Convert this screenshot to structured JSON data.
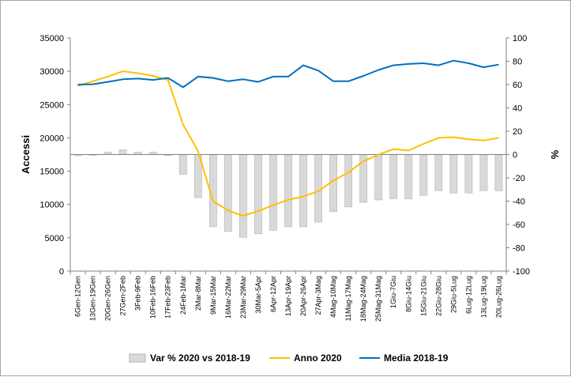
{
  "chart_data": {
    "type": "bar+line",
    "categories": [
      "6Gen-12Gen",
      "13Gen-19Gen",
      "20Gen-26Gen",
      "27Gen-2Feb",
      "3Feb-9Feb",
      "10Feb-16Feb",
      "17Feb-23Feb",
      "24Feb-1Mar",
      "2Mar-8Mar",
      "9Mar-15Mar",
      "16Mar-22Mar",
      "23Mar-29Mar",
      "30Mar-5Apr",
      "6Apr-12Apr",
      "13Apr-19Apr",
      "20Apr-26Apr",
      "27Apr-3Mag",
      "4Mag-10Mag",
      "11Mag-17Mag",
      "18Mag-24Mag",
      "25Mag-31Mag",
      "1Giu-7Giu",
      "8Giu-14Giu",
      "15Giu-21Giu",
      "22Giu-28Giu",
      "29Giu-5Lug",
      "6Lug-12Lug",
      "13Lug-19Lug",
      "20Lug-26Lug"
    ],
    "series": [
      {
        "name": "Var % 2020 vs 2018-19",
        "kind": "bar",
        "axis": "right",
        "color": "#d9d9d9",
        "values": [
          -1,
          0,
          2,
          4,
          2,
          2,
          -1,
          -17,
          -37,
          -62,
          -66,
          -71,
          -68,
          -65,
          -62,
          -62,
          -58,
          -49,
          -45,
          -41,
          -39,
          -38,
          -38,
          -35,
          -31,
          -33,
          -33,
          -31,
          -31
        ]
      },
      {
        "name": "Anno 2020",
        "kind": "line",
        "axis": "left",
        "color": "#ffc000",
        "values": [
          27800,
          28500,
          29200,
          30000,
          29700,
          29300,
          28700,
          22000,
          18000,
          10500,
          9100,
          8300,
          9000,
          9900,
          10700,
          11200,
          12000,
          13600,
          14800,
          16500,
          17500,
          18300,
          18100,
          19100,
          20000,
          20100,
          19800,
          19600,
          20000
        ]
      },
      {
        "name": "Media 2018-19",
        "kind": "line",
        "axis": "left",
        "color": "#0070c0",
        "values": [
          28000,
          28050,
          28400,
          28800,
          28900,
          28700,
          29000,
          27600,
          29200,
          29000,
          28500,
          28800,
          28400,
          29200,
          29200,
          30900,
          30100,
          28500,
          28500,
          29300,
          30200,
          30900,
          31100,
          31200,
          30900,
          31600,
          31200,
          30600,
          31000
        ]
      }
    ],
    "y_left": {
      "label": "Accessi",
      "min": 0,
      "max": 35000,
      "step": 5000
    },
    "y_right": {
      "label": "%",
      "min": -100,
      "max": 100,
      "step": 20
    },
    "grid": false,
    "legend": "bottom",
    "legend_entries": [
      "Var % 2020 vs 2018-19",
      "Anno 2020",
      "Media 2018-19"
    ]
  }
}
